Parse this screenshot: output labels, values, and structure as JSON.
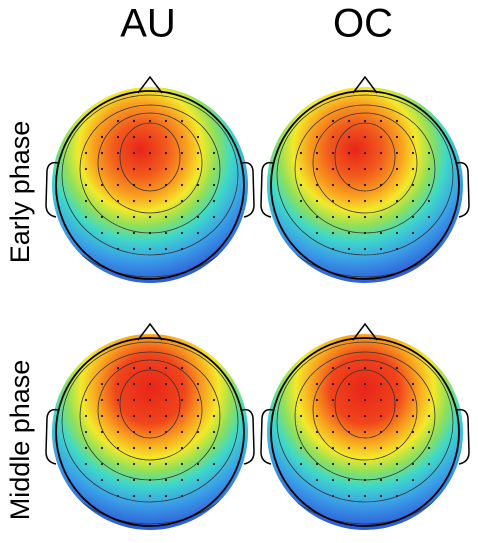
{
  "columns": [
    "AU",
    "OC"
  ],
  "rows": [
    "Early phase",
    "Middle phase"
  ]
}
